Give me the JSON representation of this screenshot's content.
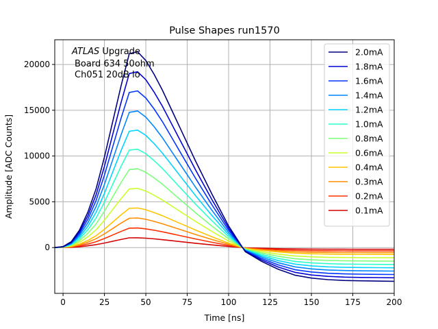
{
  "chart_data": {
    "type": "line",
    "title": "Pulse Shapes run1570",
    "xlabel": "Time [ns]",
    "ylabel": "Amplitude [ADC Counts]",
    "xlim": [
      -5,
      200
    ],
    "ylim": [
      -5000,
      22700
    ],
    "xticks": [
      0,
      25,
      50,
      75,
      100,
      125,
      150,
      175,
      200
    ],
    "yticks": [
      0,
      5000,
      10000,
      15000,
      20000
    ],
    "grid": true,
    "legend_position": "top-right",
    "annotation": {
      "italic": "ATLAS",
      "line1_rest": " Upgrade",
      "line2": "Board 634 50ohm",
      "line3": "Ch051 20dB lo"
    },
    "x": [
      -5,
      0,
      5,
      10,
      15,
      20,
      25,
      30,
      35,
      40,
      45,
      50,
      55,
      60,
      70,
      80,
      90,
      100,
      110,
      120,
      130,
      140,
      150,
      160,
      170,
      180,
      190,
      200
    ],
    "series": [
      {
        "name": "2.0mA",
        "color": "#00007f",
        "values": [
          0,
          108,
          645,
          1935,
          3870,
          6450,
          9890,
          13760,
          17630,
          21180,
          21390,
          20430,
          18920,
          17200,
          13330,
          9460,
          5810,
          2370,
          -430,
          -1510,
          -2370,
          -3010,
          -3330,
          -3500,
          -3590,
          -3630,
          -3660,
          -3680
        ]
      },
      {
        "name": "1.8mA",
        "color": "#0000d4",
        "values": [
          0,
          97,
          579,
          1737,
          3474,
          5790,
          8878,
          12352,
          15826,
          19010,
          19204,
          18335,
          16984,
          15440,
          11966,
          8492,
          5211,
          2123,
          -386,
          -1351,
          -2123,
          -2702,
          -2992,
          -3146,
          -3223,
          -3262,
          -3281,
          -3300
        ]
      },
      {
        "name": "1.6mA",
        "color": "#0034ff",
        "values": [
          0,
          86,
          516,
          1548,
          3096,
          5160,
          7912,
          11008,
          14104,
          16942,
          17114,
          16340,
          15136,
          13760,
          10664,
          7568,
          4644,
          1892,
          -344,
          -1204,
          -1892,
          -2408,
          -2666,
          -2804,
          -2872,
          -2907,
          -2924,
          -2941
        ]
      },
      {
        "name": "1.4mA",
        "color": "#0084ff",
        "values": [
          0,
          75,
          450,
          1350,
          2700,
          4500,
          6900,
          9600,
          12300,
          14775,
          14925,
          14250,
          13200,
          12000,
          9300,
          6600,
          4050,
          1650,
          -300,
          -1050,
          -1650,
          -2100,
          -2325,
          -2445,
          -2505,
          -2535,
          -2550,
          -2565
        ]
      },
      {
        "name": "1.2mA",
        "color": "#00d4ff",
        "values": [
          0,
          65,
          387,
          1161,
          2322,
          3870,
          5934,
          8256,
          10578,
          12707,
          12836,
          12255,
          11352,
          10320,
          7998,
          5676,
          3483,
          1419,
          -258,
          -903,
          -1419,
          -1806,
          -2000,
          -2103,
          -2154,
          -2180,
          -2193,
          -2206
        ]
      },
      {
        "name": "1.0mA",
        "color": "#2cffca",
        "values": [
          0,
          54,
          324,
          972,
          1944,
          3240,
          4968,
          6912,
          8856,
          10638,
          10746,
          10260,
          9504,
          8640,
          6696,
          4752,
          2916,
          1188,
          -216,
          -756,
          -1188,
          -1512,
          -1674,
          -1760,
          -1804,
          -1825,
          -1836,
          -1847
        ]
      },
      {
        "name": "0.8mA",
        "color": "#7cff79",
        "values": [
          0,
          43,
          260,
          779,
          1557,
          2595,
          3979,
          5536,
          7093,
          8520,
          8607,
          8218,
          7612,
          6920,
          5363,
          3806,
          2336,
          952,
          -173,
          -606,
          -952,
          -1211,
          -1341,
          -1410,
          -1445,
          -1462,
          -1471,
          -1479
        ]
      },
      {
        "name": "0.6mA",
        "color": "#caff2c",
        "values": [
          0,
          33,
          195,
          585,
          1170,
          1950,
          2990,
          4160,
          5330,
          6403,
          6468,
          6175,
          5720,
          5200,
          4030,
          2860,
          1755,
          715,
          -130,
          -455,
          -715,
          -910,
          -1008,
          -1060,
          -1086,
          -1099,
          -1105,
          -1112
        ]
      },
      {
        "name": "0.4mA",
        "color": "#ffc400",
        "values": [
          0,
          22,
          131,
          392,
          783,
          1305,
          2001,
          2784,
          3567,
          4285,
          4328,
          4133,
          3828,
          3480,
          2697,
          1914,
          1175,
          479,
          -87,
          -305,
          -479,
          -609,
          -674,
          -709,
          -726,
          -735,
          -740,
          -744
        ]
      },
      {
        "name": "0.3mA",
        "color": "#ff8c00",
        "values": [
          0,
          16,
          98,
          293,
          585,
          975,
          1495,
          2080,
          2665,
          3201,
          3234,
          3088,
          2860,
          2600,
          2015,
          1430,
          878,
          358,
          -65,
          -228,
          -358,
          -455,
          -504,
          -530,
          -543,
          -549,
          -553,
          -556
        ]
      },
      {
        "name": "0.2mA",
        "color": "#ff3000",
        "values": [
          0,
          11,
          65,
          194,
          387,
          645,
          989,
          1376,
          1763,
          2118,
          2139,
          2043,
          1892,
          1720,
          1333,
          946,
          581,
          237,
          -43,
          -151,
          -237,
          -301,
          -333,
          -350,
          -359,
          -363,
          -366,
          -368
        ]
      },
      {
        "name": "0.1mA",
        "color": "#d40000",
        "values": [
          0,
          5,
          32,
          97,
          194,
          324,
          497,
          691,
          886,
          1064,
          1075,
          1026,
          950,
          864,
          670,
          475,
          292,
          119,
          -22,
          -76,
          -119,
          -151,
          -167,
          -176,
          -180,
          -183,
          -184,
          -185
        ]
      }
    ]
  }
}
